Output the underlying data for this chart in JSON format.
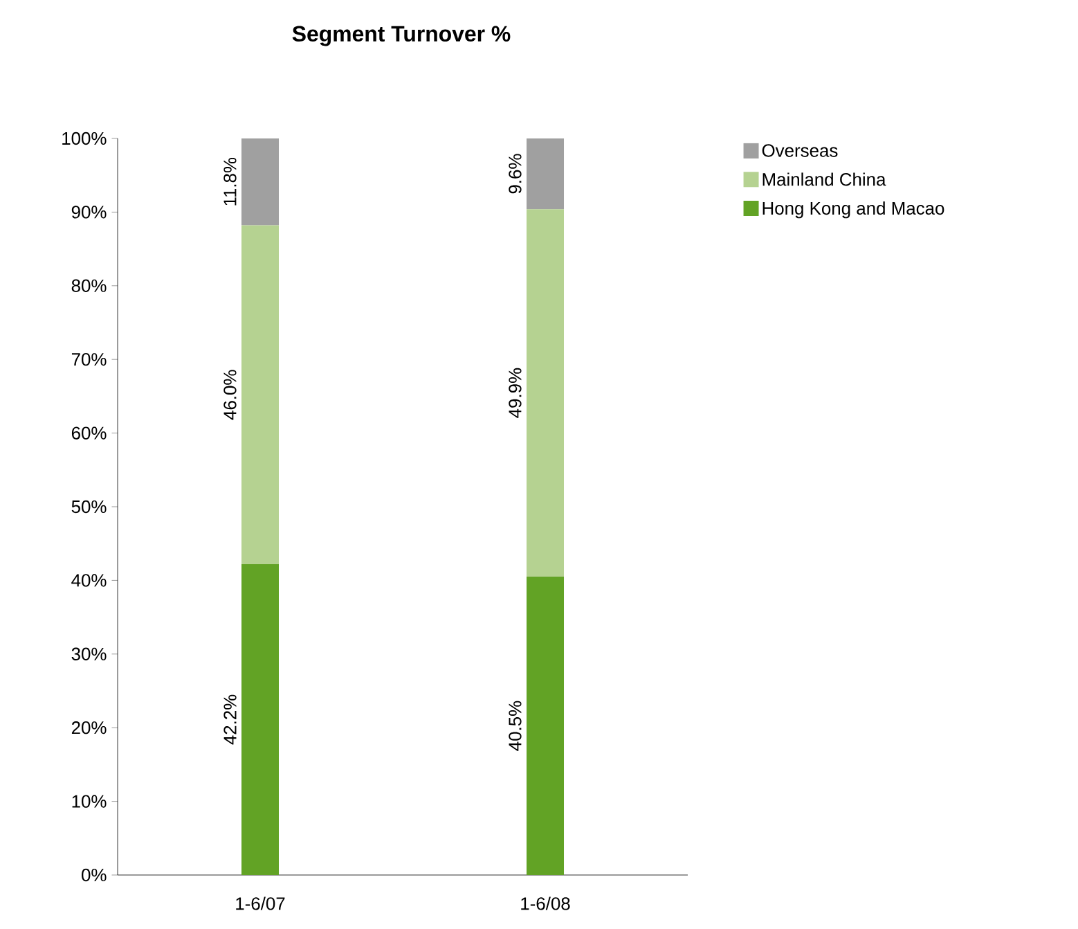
{
  "chart_data": {
    "type": "bar",
    "title": "Segment Turnover %",
    "stacked": true,
    "categories": [
      "1-6/07",
      "1-6/08"
    ],
    "series": [
      {
        "name": "Hong Kong and Macao",
        "color": "#62a325",
        "values": [
          42.2,
          40.5
        ],
        "value_labels": [
          "42.2%",
          "40.5%"
        ]
      },
      {
        "name": "Mainland China",
        "color": "#b5d291",
        "values": [
          46.0,
          49.9
        ],
        "value_labels": [
          "46.0%",
          "49.9%"
        ]
      },
      {
        "name": "Overseas",
        "color": "#a0a0a0",
        "values": [
          11.8,
          9.6
        ],
        "value_labels": [
          "11.8%",
          "9.6%"
        ]
      }
    ],
    "ylim": [
      0,
      100
    ],
    "yticks": [
      {
        "value": 0,
        "label": "0%"
      },
      {
        "value": 10,
        "label": "10%"
      },
      {
        "value": 20,
        "label": "20%"
      },
      {
        "value": 30,
        "label": "30%"
      },
      {
        "value": 40,
        "label": "40%"
      },
      {
        "value": 50,
        "label": "50%"
      },
      {
        "value": 60,
        "label": "60%"
      },
      {
        "value": 70,
        "label": "70%"
      },
      {
        "value": 80,
        "label": "80%"
      },
      {
        "value": 90,
        "label": "90%"
      },
      {
        "value": 100,
        "label": "100%"
      }
    ],
    "grid": false,
    "legend": "right"
  }
}
